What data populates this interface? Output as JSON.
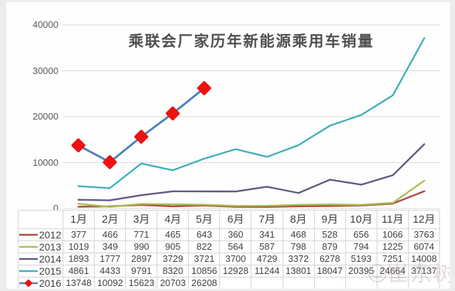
{
  "title": "乘联会厂家历年新能源乘用车销量",
  "watermark": {
    "text": "崔东树"
  },
  "colors": {
    "gridline": "#d9d9d9",
    "axis_text": "#595959",
    "table_border": "#d4d4d4",
    "table_text": "#3f3f3f",
    "title_text": "#4f4f4f",
    "marker_red": "#ee1111"
  },
  "chart_data": {
    "type": "line",
    "title": "乘联会厂家历年新能源乘用车销量",
    "categories": [
      "1月",
      "2月",
      "3月",
      "4月",
      "5月",
      "6月",
      "7月",
      "8月",
      "9月",
      "10月",
      "11月",
      "12月"
    ],
    "series": [
      {
        "name": "2012",
        "color": "#ab4a43",
        "values": [
          377,
          466,
          771,
          465,
          643,
          360,
          341,
          468,
          528,
          656,
          1066,
          3763
        ]
      },
      {
        "name": "2013",
        "color": "#aabd52",
        "values": [
          1019,
          349,
          990,
          905,
          822,
          564,
          587,
          798,
          879,
          794,
          1225,
          6074
        ]
      },
      {
        "name": "2014",
        "color": "#5f5a80",
        "values": [
          1893,
          1777,
          2897,
          3729,
          3721,
          3700,
          4729,
          3372,
          6278,
          5193,
          7251,
          14008
        ]
      },
      {
        "name": "2015",
        "color": "#3fb0ba",
        "values": [
          4861,
          4433,
          9791,
          8320,
          10856,
          12928,
          11244,
          13801,
          18047,
          20395,
          24664,
          37137
        ]
      },
      {
        "name": "2016",
        "color": "#4f81bd",
        "marker": "diamond",
        "marker_color": "#ee1111",
        "values": [
          13748,
          10092,
          15623,
          20703,
          26208
        ]
      }
    ],
    "ylim": [
      0,
      40000
    ],
    "yticks": [
      0,
      10000,
      20000,
      30000,
      40000
    ],
    "grid": true,
    "legend_position": "table-left"
  }
}
